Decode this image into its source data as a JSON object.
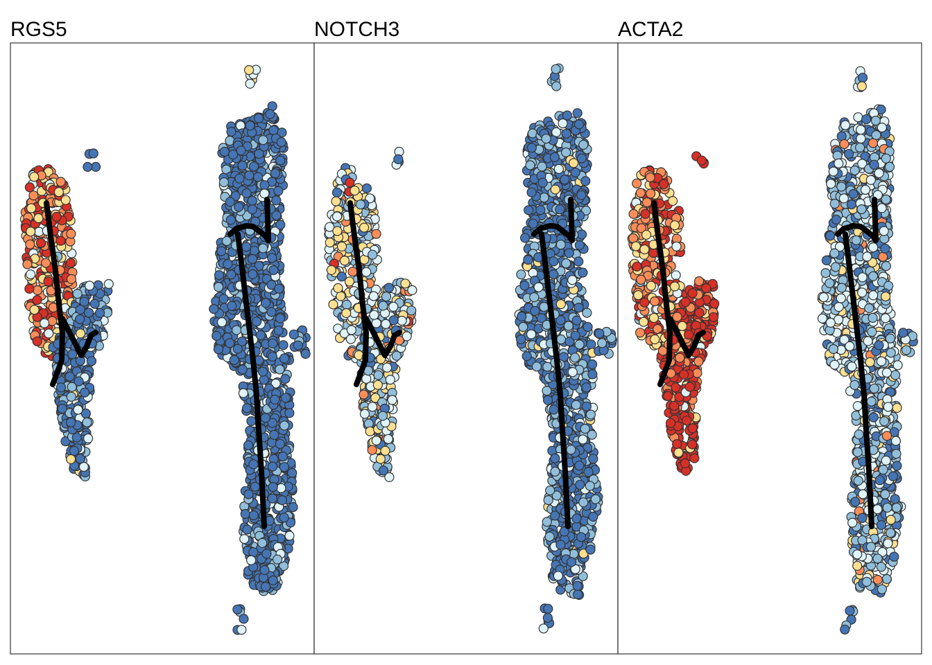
{
  "chart_data": {
    "type": "scatter",
    "description_free": true,
    "color_scale": {
      "low_to_high": [
        "#4575b4",
        "#91bfdb",
        "#e0f3f8",
        "#fee090",
        "#fc8d59",
        "#d73027"
      ]
    },
    "trajectory_color": "#000000",
    "point_outline_color": "#333333",
    "panels": [
      {
        "title": "RGS5",
        "cluster_levels": {
          "left_upper": 0.72,
          "left_lower": 0.12,
          "right": 0.04,
          "top_blob": 0.55,
          "small_dot": 0.2,
          "right_ear": 0.1
        }
      },
      {
        "title": "NOTCH3",
        "cluster_levels": {
          "left_upper": 0.45,
          "left_lower": 0.4,
          "right": 0.12,
          "top_blob": 0.15,
          "small_dot": 0.05,
          "right_ear": 0.1
        }
      },
      {
        "title": "ACTA2",
        "cluster_levels": {
          "left_upper": 0.72,
          "left_lower": 0.92,
          "right": 0.3,
          "top_blob": 0.35,
          "small_dot": 0.98,
          "right_ear": 0.15
        }
      }
    ]
  }
}
